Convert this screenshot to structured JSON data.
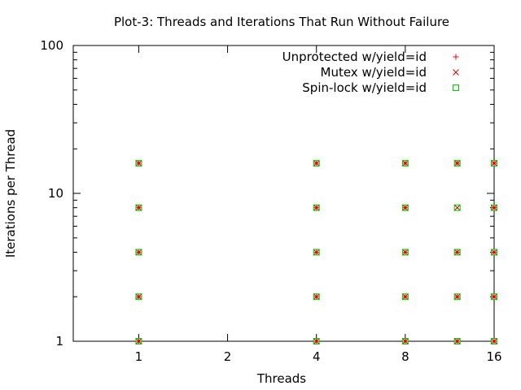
{
  "chart_data": {
    "type": "scatter",
    "title": "Plot-3: Threads and Iterations That Run Without Failure",
    "xlabel": "Threads",
    "ylabel": "Iterations per Thread",
    "x_scale": "log2",
    "y_scale": "log10",
    "xlim": [
      0.6,
      16
    ],
    "ylim": [
      1,
      100
    ],
    "x_ticks": [
      {
        "value": 1,
        "label": "1"
      },
      {
        "value": 2,
        "label": "2"
      },
      {
        "value": 4,
        "label": "4"
      },
      {
        "value": 8,
        "label": "8"
      },
      {
        "value": 16,
        "label": "16"
      }
    ],
    "y_ticks": [
      {
        "value": 1,
        "label": "1"
      },
      {
        "value": 10,
        "label": "10"
      },
      {
        "value": 100,
        "label": "100"
      }
    ],
    "grid": false,
    "legend_position": "top-right",
    "series": [
      {
        "name": "Unprotected w/yield=id",
        "marker": "plus",
        "color": "#ff0000",
        "points": [
          [
            1,
            1
          ],
          [
            1,
            2
          ],
          [
            1,
            4
          ],
          [
            1,
            8
          ],
          [
            1,
            16
          ],
          [
            4,
            1
          ],
          [
            4,
            2
          ],
          [
            4,
            4
          ],
          [
            4,
            8
          ],
          [
            4,
            16
          ],
          [
            8,
            1
          ],
          [
            8,
            2
          ],
          [
            8,
            4
          ],
          [
            8,
            8
          ],
          [
            8,
            16
          ],
          [
            12,
            1
          ],
          [
            12,
            2
          ],
          [
            12,
            4
          ],
          [
            12,
            16
          ],
          [
            16,
            1
          ],
          [
            16,
            2
          ],
          [
            16,
            4
          ],
          [
            16,
            8
          ],
          [
            16,
            16
          ]
        ]
      },
      {
        "name": "Mutex w/yield=id",
        "marker": "cross",
        "color": "#cc0000",
        "points": [
          [
            1,
            1
          ],
          [
            1,
            2
          ],
          [
            1,
            4
          ],
          [
            1,
            8
          ],
          [
            1,
            16
          ],
          [
            4,
            1
          ],
          [
            4,
            2
          ],
          [
            4,
            4
          ],
          [
            4,
            8
          ],
          [
            4,
            16
          ],
          [
            8,
            1
          ],
          [
            8,
            2
          ],
          [
            8,
            4
          ],
          [
            8,
            8
          ],
          [
            8,
            16
          ],
          [
            12,
            1
          ],
          [
            12,
            2
          ],
          [
            12,
            4
          ],
          [
            12,
            8
          ],
          [
            12,
            16
          ],
          [
            16,
            1
          ],
          [
            16,
            2
          ],
          [
            16,
            4
          ],
          [
            16,
            8
          ],
          [
            16,
            16
          ]
        ]
      },
      {
        "name": "Spin-lock w/yield=id",
        "marker": "square",
        "color": "#00cc00",
        "points": [
          [
            1,
            1
          ],
          [
            1,
            2
          ],
          [
            1,
            4
          ],
          [
            1,
            8
          ],
          [
            1,
            16
          ],
          [
            4,
            1
          ],
          [
            4,
            2
          ],
          [
            4,
            4
          ],
          [
            4,
            8
          ],
          [
            4,
            16
          ],
          [
            8,
            1
          ],
          [
            8,
            2
          ],
          [
            8,
            4
          ],
          [
            8,
            8
          ],
          [
            8,
            16
          ],
          [
            12,
            1
          ],
          [
            12,
            2
          ],
          [
            12,
            4
          ],
          [
            12,
            8
          ],
          [
            12,
            16
          ],
          [
            16,
            1
          ],
          [
            16,
            2
          ],
          [
            16,
            4
          ],
          [
            16,
            8
          ],
          [
            16,
            16
          ]
        ]
      }
    ]
  }
}
